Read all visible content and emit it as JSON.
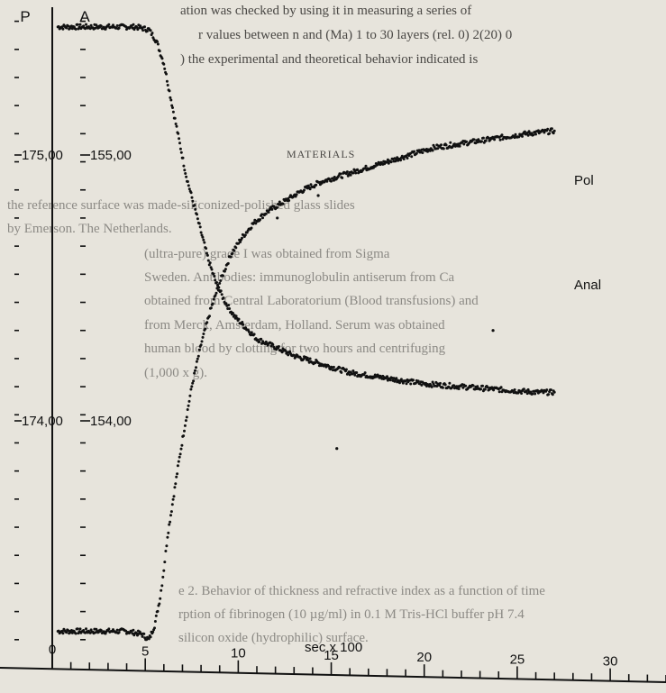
{
  "chart_data": {
    "type": "scatter",
    "title": "",
    "xlabel": "sec x 100",
    "xlim": [
      0,
      33
    ],
    "x_ticks": [
      0,
      5,
      10,
      15,
      20,
      25,
      30
    ],
    "left_axes": [
      {
        "name": "P",
        "ticks": [
          "175,00",
          "174,00"
        ]
      },
      {
        "name": "A",
        "ticks": [
          "155,00",
          "154,00"
        ]
      }
    ],
    "ylim": [
      173.15,
      175.5
    ],
    "y_ticks": [
      175.0,
      174.0
    ],
    "series": [
      {
        "name": "Pol",
        "points": [
          [
            0.3,
            175.43
          ],
          [
            1.5,
            175.43
          ],
          [
            3.0,
            175.43
          ],
          [
            4.5,
            175.43
          ],
          [
            5.2,
            175.42
          ],
          [
            5.6,
            175.38
          ],
          [
            6.0,
            175.3
          ],
          [
            6.3,
            175.2
          ],
          [
            6.6,
            175.1
          ],
          [
            6.9,
            175.0
          ],
          [
            7.2,
            174.9
          ],
          [
            7.6,
            174.8
          ],
          [
            8.0,
            174.7
          ],
          [
            8.4,
            174.6
          ],
          [
            8.8,
            174.52
          ],
          [
            9.3,
            174.45
          ],
          [
            9.8,
            174.4
          ],
          [
            10.4,
            174.36
          ],
          [
            11.0,
            174.32
          ],
          [
            12.0,
            174.29
          ],
          [
            13.0,
            174.26
          ],
          [
            14.0,
            174.24
          ],
          [
            15.0,
            174.22
          ],
          [
            16.0,
            174.2
          ],
          [
            17.0,
            174.19
          ],
          [
            18.0,
            174.18
          ],
          [
            19.0,
            174.17
          ],
          [
            20.0,
            174.16
          ],
          [
            21.0,
            174.155
          ],
          [
            22.0,
            174.15
          ],
          [
            23.0,
            174.145
          ],
          [
            24.0,
            174.14
          ],
          [
            25.0,
            174.135
          ],
          [
            26.0,
            174.13
          ],
          [
            27.0,
            174.13
          ]
        ]
      },
      {
        "name": "Anal",
        "points": [
          [
            0.3,
            173.28
          ],
          [
            1.5,
            173.28
          ],
          [
            3.0,
            173.28
          ],
          [
            4.0,
            173.28
          ],
          [
            4.8,
            173.27
          ],
          [
            5.2,
            173.25
          ],
          [
            5.5,
            173.3
          ],
          [
            5.8,
            173.4
          ],
          [
            6.0,
            173.5
          ],
          [
            6.2,
            173.62
          ],
          [
            6.5,
            173.75
          ],
          [
            6.8,
            173.88
          ],
          [
            7.1,
            174.0
          ],
          [
            7.5,
            174.15
          ],
          [
            8.0,
            174.3
          ],
          [
            8.5,
            174.42
          ],
          [
            9.0,
            174.52
          ],
          [
            9.6,
            174.62
          ],
          [
            10.2,
            174.68
          ],
          [
            10.8,
            174.73
          ],
          [
            11.5,
            174.77
          ],
          [
            12.5,
            174.81
          ],
          [
            13.5,
            174.85
          ],
          [
            14.5,
            174.88
          ],
          [
            15.5,
            174.9
          ],
          [
            16.5,
            174.92
          ],
          [
            17.5,
            174.94
          ],
          [
            18.5,
            174.96
          ],
          [
            19.5,
            174.98
          ],
          [
            20.5,
            175.0
          ],
          [
            21.5,
            175.01
          ],
          [
            22.5,
            175.02
          ],
          [
            23.5,
            175.03
          ],
          [
            24.5,
            175.04
          ],
          [
            25.5,
            175.05
          ],
          [
            27.0,
            175.06
          ]
        ]
      }
    ],
    "outliers": [
      [
        12.1,
        174.75
      ],
      [
        14.3,
        174.83
      ],
      [
        15.3,
        173.93
      ],
      [
        23.7,
        174.35
      ]
    ],
    "legend": "labels at right end of series"
  },
  "background_text": {
    "top_lines": [
      "ation was checked by using it in measuring a series of",
      "r values between n and  (Ma)  1 to 30 layers (rel. 0) 2(20) 0",
      ") the experimental and theoretical behavior indicated  is"
    ],
    "materials_heading": "MATERIALS",
    "materials_lines": [
      "the reference surface was made-siliconized-polished glass slides",
      "by Emerson. The Netherlands.",
      "(ultra-pure) grade I was obtained from Sigma",
      "Sweden. Antibodies: immunoglobulin antiserum from Ca",
      "obtained from Central Laboratorium (Blood transfusions) and",
      "from Merck, Amsterdam, Holland. Serum was obtained",
      "human blood by clotting for two hours and centrifuging",
      "(1,000 x g)."
    ],
    "caption_lines": [
      "e 2. Behavior of thickness and refractive index as a function of time",
      "rption of fibrinogen (10 µg/ml) in 0.1 M Tris-HCl buffer pH 7.4",
      "silicon oxide (hydrophilic) surface."
    ]
  }
}
